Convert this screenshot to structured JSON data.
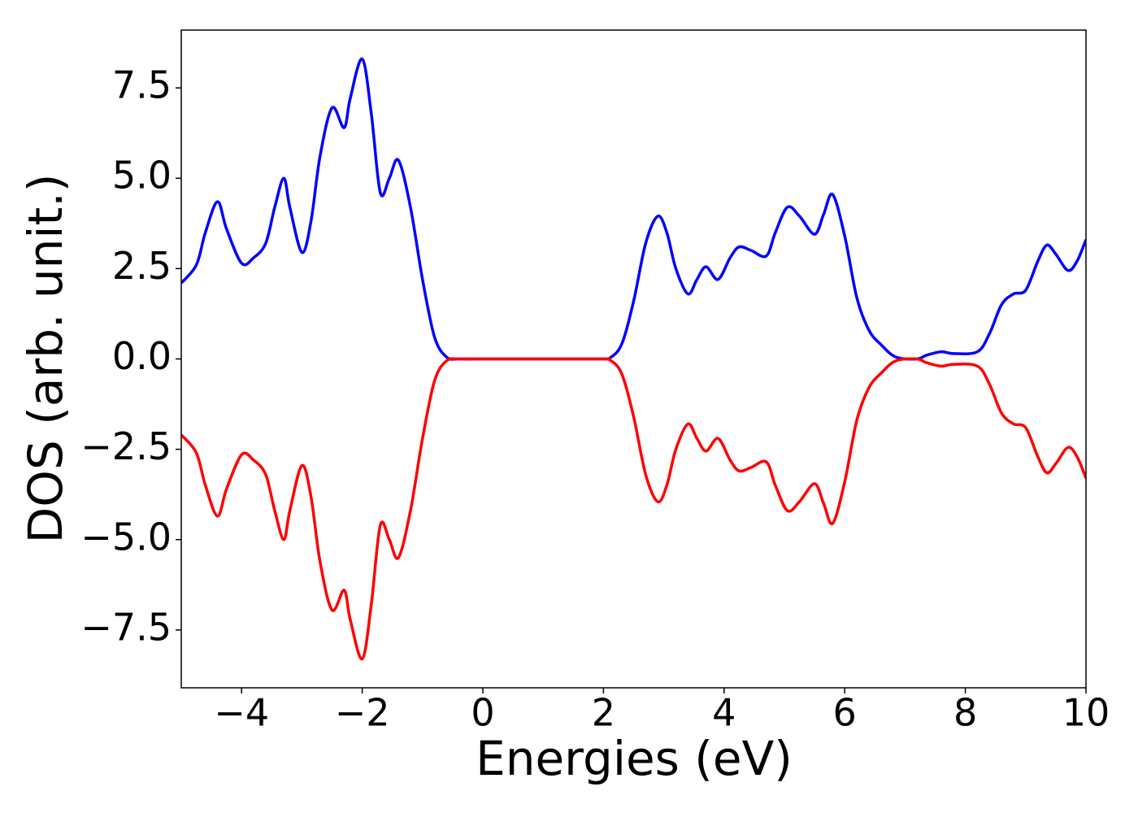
{
  "chart_data": {
    "type": "line",
    "xlabel": "Energies (eV)",
    "ylabel": "DOS (arb. unit.)",
    "x": [
      -5,
      -4.75,
      -4.6,
      -4.4,
      -4.25,
      -4.0,
      -3.8,
      -3.6,
      -3.45,
      -3.3,
      -3.2,
      -3.0,
      -2.85,
      -2.7,
      -2.5,
      -2.3,
      -2.2,
      -2.0,
      -1.85,
      -1.7,
      -1.55,
      -1.4,
      -1.2,
      -1.0,
      -0.8,
      -0.6,
      -0.4,
      0,
      1,
      2,
      2.1,
      2.3,
      2.5,
      2.7,
      2.9,
      3.05,
      3.2,
      3.4,
      3.55,
      3.7,
      3.9,
      4.1,
      4.25,
      4.45,
      4.7,
      4.85,
      5.05,
      5.25,
      5.5,
      5.65,
      5.8,
      6.0,
      6.2,
      6.4,
      6.6,
      6.85,
      7.2,
      7.35,
      7.6,
      7.8,
      8.2,
      8.4,
      8.6,
      8.8,
      9.0,
      9.2,
      9.35,
      9.5,
      9.7,
      9.85,
      10
    ],
    "series": [
      {
        "color": "#0000ff",
        "values": [
          2.1,
          2.6,
          3.5,
          4.35,
          3.6,
          2.65,
          2.8,
          3.2,
          4.2,
          5.0,
          4.2,
          2.95,
          3.8,
          5.6,
          6.95,
          6.4,
          7.2,
          8.3,
          6.8,
          4.6,
          5.0,
          5.5,
          4.2,
          2.2,
          0.6,
          0.05,
          0,
          0,
          0,
          0,
          0.02,
          0.4,
          1.6,
          3.2,
          3.95,
          3.5,
          2.5,
          1.8,
          2.2,
          2.55,
          2.2,
          2.8,
          3.1,
          3.0,
          2.85,
          3.5,
          4.2,
          3.95,
          3.45,
          4.0,
          4.55,
          3.4,
          1.7,
          0.8,
          0.4,
          0.05,
          0,
          0.1,
          0.2,
          0.15,
          0.2,
          0.7,
          1.5,
          1.8,
          1.9,
          2.7,
          3.15,
          2.9,
          2.45,
          2.7,
          3.3
        ]
      },
      {
        "color": "#ff0000",
        "values": [
          -2.1,
          -2.6,
          -3.5,
          -4.35,
          -3.6,
          -2.65,
          -2.8,
          -3.2,
          -4.2,
          -5.0,
          -4.2,
          -2.95,
          -3.8,
          -5.6,
          -6.95,
          -6.4,
          -7.2,
          -8.3,
          -6.8,
          -4.6,
          -5.0,
          -5.5,
          -4.2,
          -2.2,
          -0.6,
          -0.05,
          0,
          0,
          0,
          0,
          -0.02,
          -0.4,
          -1.6,
          -3.2,
          -3.95,
          -3.5,
          -2.5,
          -1.8,
          -2.2,
          -2.55,
          -2.2,
          -2.8,
          -3.1,
          -3.0,
          -2.85,
          -3.5,
          -4.2,
          -3.95,
          -3.45,
          -4.0,
          -4.55,
          -3.4,
          -1.7,
          -0.8,
          -0.4,
          -0.05,
          0,
          -0.1,
          -0.2,
          -0.15,
          -0.2,
          -0.7,
          -1.5,
          -1.8,
          -1.9,
          -2.7,
          -3.15,
          -2.9,
          -2.45,
          -2.7,
          -3.3
        ]
      }
    ],
    "xlim": [
      -5,
      10
    ],
    "ylim": [
      -9.1,
      9.1
    ],
    "xticks": [
      {
        "value": -4,
        "label": "−4"
      },
      {
        "value": -2,
        "label": "−2"
      },
      0,
      2,
      4,
      6,
      8,
      10
    ],
    "yticks": [
      {
        "value": -7.5,
        "label": "−7.5"
      },
      {
        "value": -5,
        "label": "−5.0"
      },
      {
        "value": -2.5,
        "label": "−2.5"
      },
      {
        "value": 0,
        "label": "0.0"
      },
      2.5,
      {
        "value": 5,
        "label": "5.0"
      },
      7.5
    ],
    "grid": false
  }
}
